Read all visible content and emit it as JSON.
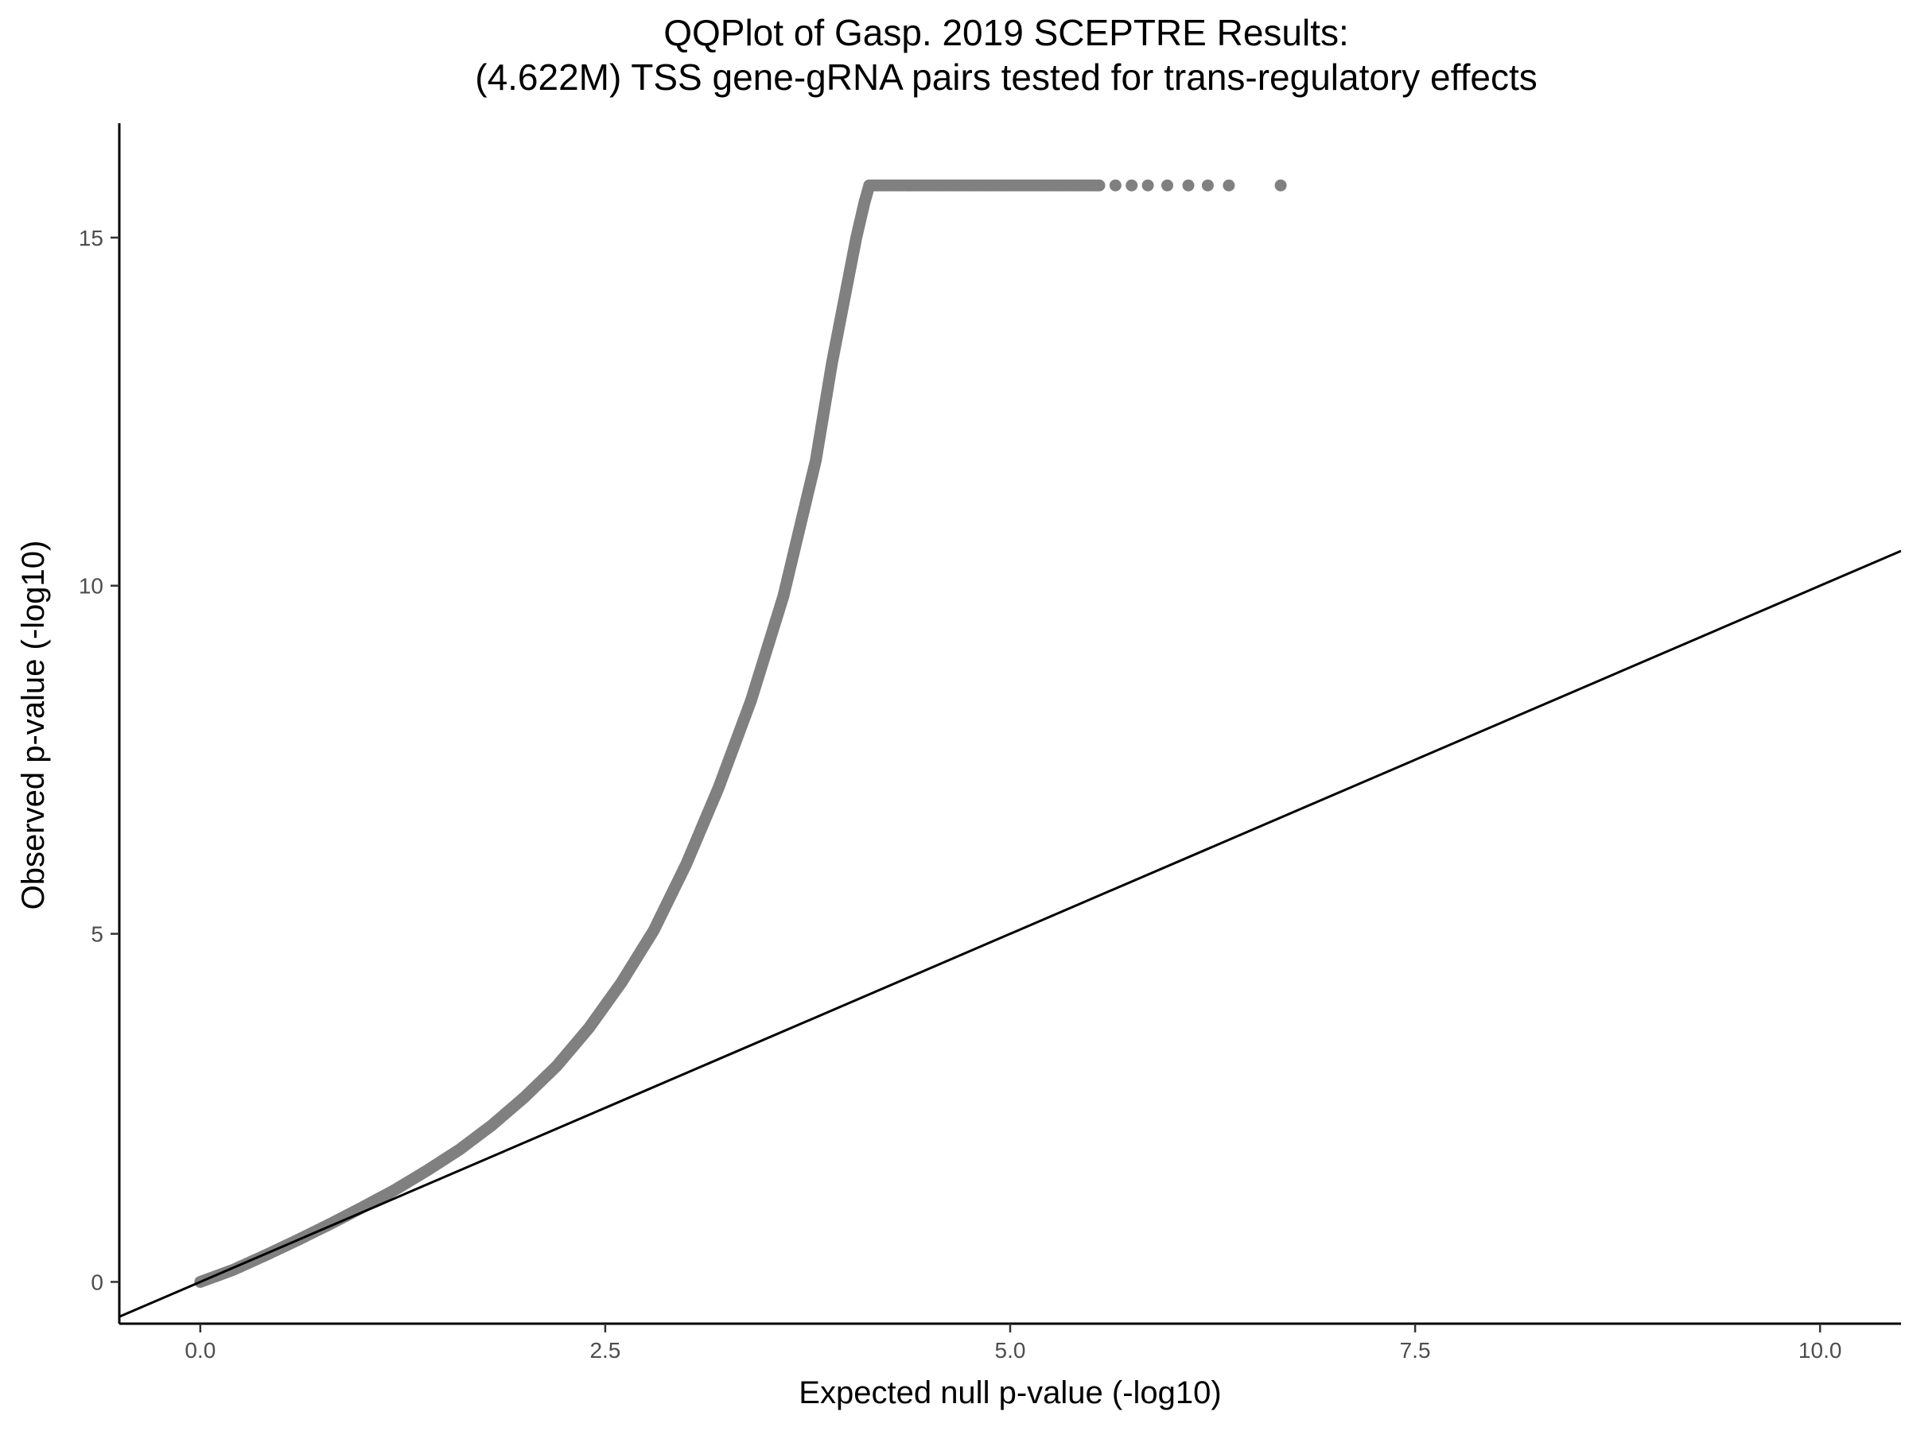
{
  "chart_data": {
    "type": "scatter",
    "title_line1": "QQPlot of Gasp. 2019 SCEPTRE Results:",
    "title_line2": "(4.622M) TSS gene-gRNA pairs tested for trans-regulatory effects",
    "xlabel": "Expected null p-value (-log10)",
    "ylabel": "Observed p-value (-log10)",
    "xlim": [
      -0.5,
      10.5
    ],
    "ylim": [
      -0.6,
      16.7
    ],
    "xticks": [
      0,
      2.5,
      5,
      7.5,
      10
    ],
    "xtick_labels": [
      "0.0",
      "2.5",
      "5.0",
      "7.5",
      "10.0"
    ],
    "yticks": [
      0,
      5,
      10,
      15
    ],
    "ytick_labels": [
      "0",
      "5",
      "10",
      "15"
    ],
    "grid": false,
    "point_color": "#808080",
    "reference_line": {
      "slope": 1,
      "intercept": 0,
      "color": "#000000"
    },
    "series": [
      {
        "x": [
          0.0,
          0.2,
          0.4,
          0.6,
          0.8,
          1.0,
          1.2,
          1.4,
          1.6,
          1.8,
          2.0,
          2.2,
          2.4,
          2.6,
          2.8,
          3.0,
          3.2,
          3.4,
          3.6,
          3.8,
          3.9,
          4.0,
          4.05,
          4.1,
          4.13,
          4.2,
          4.4,
          4.6,
          4.8,
          5.0,
          5.2,
          5.4,
          5.55,
          5.65,
          5.75,
          5.85,
          5.97,
          6.1,
          6.22,
          6.35,
          6.67
        ],
        "y": [
          0.0,
          0.17,
          0.38,
          0.6,
          0.83,
          1.07,
          1.32,
          1.6,
          1.9,
          2.25,
          2.65,
          3.1,
          3.65,
          4.3,
          5.05,
          6.0,
          7.1,
          8.35,
          9.85,
          11.8,
          13.2,
          14.4,
          15.0,
          15.5,
          15.75,
          15.75,
          15.75,
          15.75,
          15.75,
          15.75,
          15.75,
          15.75,
          15.75,
          15.75,
          15.75,
          15.75,
          15.75,
          15.75,
          15.75,
          15.75,
          15.75
        ]
      }
    ]
  }
}
